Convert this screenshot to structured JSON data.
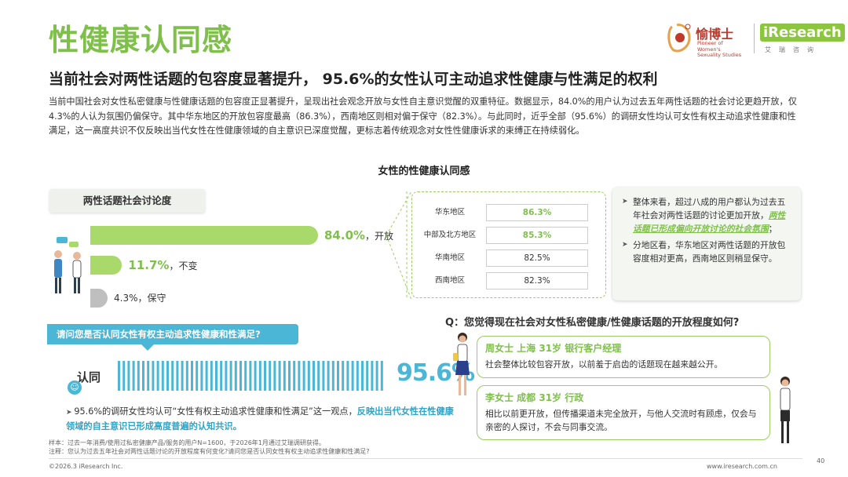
{
  "header": {
    "title": "性健康认同感",
    "subtitle": "当前社会对两性话题的包容度显著提升，  95.6%的女性认可主动追求性健康与性满足的权利",
    "intro": "当前中国社会对女性私密健康与性健康话题的包容度正显著提升，呈现出社会观念开放与女性自主意识觉醒的双重特征。数据显示，84.0%的用户认为过去五年两性话题的社会讨论更趋开放，仅4.3%的人认为氛围仍偏保守。其中华东地区的开放包容度最高（86.3%），西南地区则相对偏于保守（82.3%）。与此同时，近乎全部（95.6%）的调研女性均认可女性有权主动追求性健康和性满足，这一高度共识不仅反映出当代女性在性健康领域的自主意识已深度觉醒，更标志着传统观念对女性性健康诉求的束缚正在持续弱化。"
  },
  "logos": {
    "yu_name": "愉博士",
    "yu_tagline": "Pioneer of Women's Sexuality Studies",
    "ir_name": "iResearch",
    "ir_sub": "艾瑞咨询"
  },
  "chart_title": "女性的性健康认同感",
  "topic_label": "两性话题社会讨论度",
  "chart_data": [
    {
      "type": "bar",
      "title": "两性话题社会讨论度",
      "categories": [
        "开放",
        "不变",
        "保守"
      ],
      "values": [
        84.0,
        11.7,
        4.3
      ],
      "unit": "%",
      "labels": [
        {
          "pct": "84.0%",
          "text": "，开放"
        },
        {
          "pct": "11.7%",
          "text": "，不变"
        },
        {
          "pct": "4.3%",
          "text": "，保守"
        }
      ],
      "colors": [
        "#a9d96b",
        "#a9d96b",
        "#bfbfbf"
      ]
    },
    {
      "type": "table",
      "categories": [
        "华东地区",
        "中部及北方地区",
        "华南地区",
        "西南地区"
      ],
      "values": [
        "86.3%",
        "85.3%",
        "82.5%",
        "82.3%"
      ],
      "highlight": [
        true,
        true,
        false,
        false
      ]
    },
    {
      "type": "bar",
      "title": "认同",
      "values": [
        95.6
      ],
      "unit": "%",
      "label": "95.6%",
      "color": "#4bb6d6"
    }
  ],
  "summary": {
    "item1_pre": "整体来看，超过八成的用户都认为过去五年社会对两性话题的讨论更加开放，",
    "item1_hl": "两性话题已形成偏向开放讨论的社会氛围",
    "item1_post": "；",
    "item2": "分地区看，华东地区对两性话题的开放包容度相对更高，西南地区则稍显保守。"
  },
  "question_banner": "请问您是否认同女性有权主动追求性健康和性满足?",
  "agree_label": "认同",
  "agree_icon": "☺",
  "agree_note": {
    "pre": "95.6%的调研女性均认可“女性有权主动追求性健康和性满足”这一观点，",
    "hl": "反映出当代女性在性健康领域的自主意识已形成高度普遍的认知共识。"
  },
  "question_right": "Q：您觉得现在社会对女性私密健康/性健康话题的开放程度如何?",
  "quotes": [
    {
      "who": "周女士   上海   31岁  银行客户经理",
      "text": "社会整体比较包容开放，以前羞于启齿的话题现在越来越公开。"
    },
    {
      "who": "李女士   成都   31岁  行政",
      "text": "相比以前更开放，但传播渠道未完全放开，与他人交流时有顾虑，仅会与亲密的人探讨，不会与同事交流。"
    }
  ],
  "footer": {
    "sample": "样本：过去一年消费/使用过私密健康产品/服务的用户N=1600，于2026年1月通过艾瑞调研获得。",
    "note": "注释：您认为过去五年社会对两性话题讨论的开放程度有何变化?请问您是否认同女性有权主动追求性健康和性满足?",
    "copyright": "©2026.3 iResearch Inc.",
    "website": "www.iresearch.com.cn",
    "page": "40"
  },
  "colors": {
    "green": "#7ec04a",
    "bar_green": "#a9d96b",
    "blue": "#4bb6d6",
    "gray_bar": "#bfbfbf"
  }
}
